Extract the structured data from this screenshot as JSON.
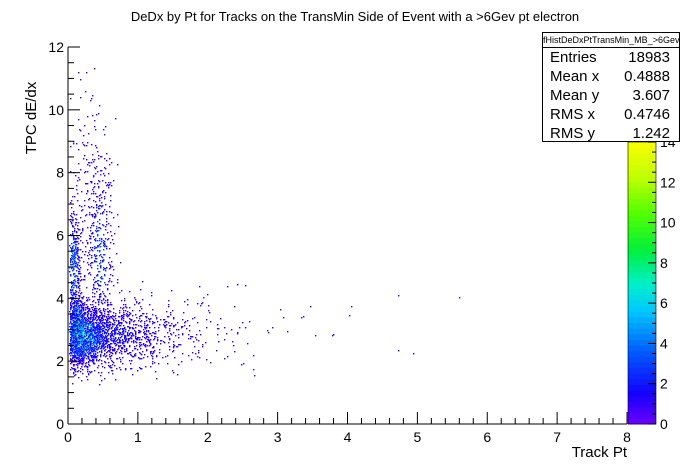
{
  "chart_data": {
    "type": "heatmap",
    "title": "DeDx by Pt for Tracks on the TransMin Side of Event with a >6Gev pt electron",
    "xlabel": "Track Pt",
    "ylabel": "TPC dE/dx",
    "xlim": [
      0,
      8
    ],
    "ylim": [
      0,
      12
    ],
    "x_ticks": [
      "0",
      "1",
      "2",
      "3",
      "4",
      "5",
      "6",
      "7",
      "8"
    ],
    "y_ticks": [
      "0",
      "2",
      "4",
      "6",
      "8",
      "10",
      "12"
    ],
    "colorbar": {
      "range": [
        0,
        14
      ],
      "ticks": [
        "0",
        "2",
        "4",
        "6",
        "8",
        "10",
        "12",
        "14"
      ]
    },
    "grid": false,
    "stats": {
      "name": "fHistDeDxPtTransMin_MB_>6Gev",
      "rows": [
        {
          "label": "Entries",
          "value": "18983"
        },
        {
          "label": "Mean x",
          "value": "0.4888"
        },
        {
          "label": "Mean y",
          "value": "3.607"
        },
        {
          "label": "RMS x",
          "value": "0.4746"
        },
        {
          "label": "RMS y",
          "value": "1.242"
        }
      ]
    },
    "density_regions": [
      {
        "x": 0.12,
        "y": 3.0,
        "sx": 0.06,
        "sy": 0.5,
        "weight": 4000,
        "peak": 12
      },
      {
        "x": 0.25,
        "y": 2.8,
        "sx": 0.2,
        "sy": 0.45,
        "weight": 5000,
        "peak": 6
      },
      {
        "x": 0.6,
        "y": 2.85,
        "sx": 0.45,
        "sy": 0.5,
        "weight": 4000,
        "peak": 2
      },
      {
        "x": 0.08,
        "y": 5.0,
        "sx": 0.05,
        "sy": 0.9,
        "weight": 1500,
        "peak": 4
      },
      {
        "x": 0.45,
        "y": 5.5,
        "sx": 0.1,
        "sy": 1.6,
        "weight": 1500,
        "peak": 3
      },
      {
        "x": 0.25,
        "y": 7.5,
        "sx": 0.18,
        "sy": 1.6,
        "weight": 600,
        "peak": 1
      },
      {
        "x": 1.4,
        "y": 3.0,
        "sx": 0.7,
        "sy": 0.6,
        "weight": 900,
        "peak": 1
      },
      {
        "x": 3.0,
        "y": 3.3,
        "sx": 1.5,
        "sy": 0.9,
        "weight": 100,
        "peak": 1
      }
    ]
  }
}
